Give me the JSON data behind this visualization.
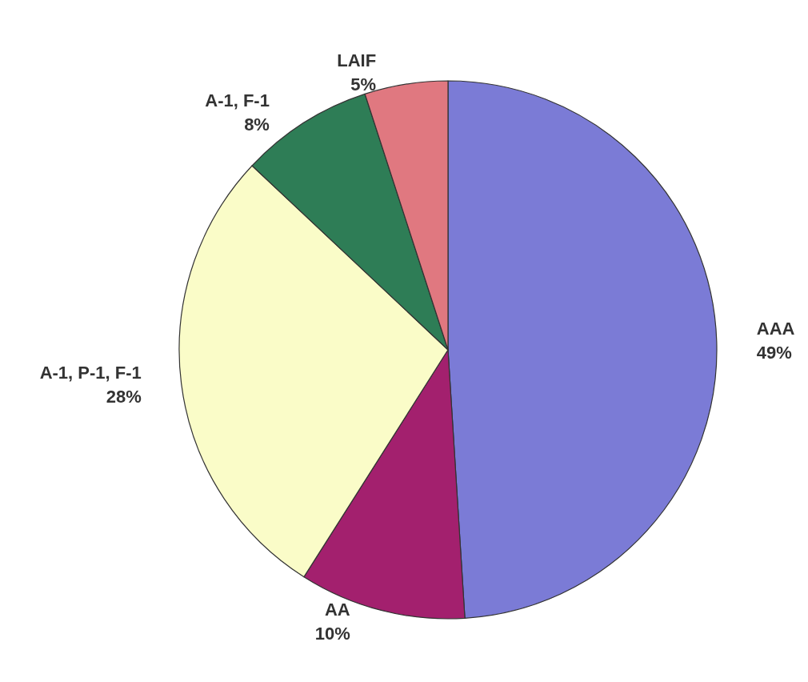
{
  "chart_data": {
    "type": "pie",
    "categories": [
      "AAA",
      "AA",
      "A-1, P-1, F-1",
      "A-1, F-1",
      "LAIF"
    ],
    "values": [
      49,
      10,
      28,
      8,
      5
    ],
    "value_labels": [
      "49%",
      "10%",
      "28%",
      "8%",
      "5%"
    ],
    "colors": [
      "#7b7bd6",
      "#a3206e",
      "#fafcc8",
      "#2e7d56",
      "#e07880"
    ],
    "legend": false
  }
}
